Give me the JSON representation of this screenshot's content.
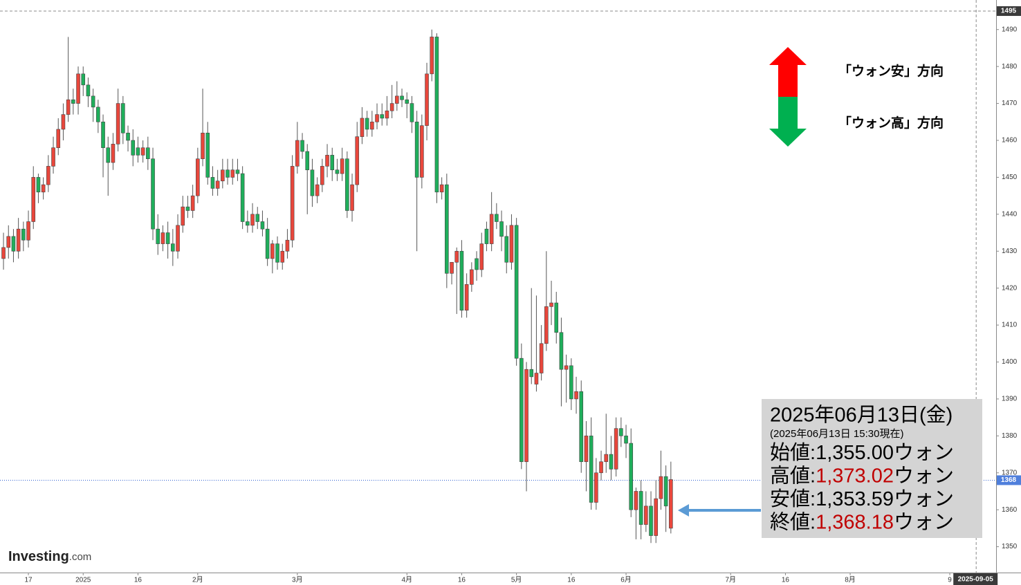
{
  "chart_data": {
    "type": "candlestick",
    "open": [
      1428,
      1431,
      1434,
      1430,
      1436,
      1433,
      1438,
      1450,
      1446,
      1448,
      1453,
      1458,
      1463,
      1467,
      1471,
      1470,
      1478,
      1475,
      1472,
      1469,
      1465,
      1458,
      1454,
      1459,
      1470,
      1462,
      1460,
      1458,
      1456,
      1458,
      1455,
      1436,
      1432,
      1435,
      1432,
      1430,
      1437,
      1442,
      1441,
      1445,
      1455,
      1462,
      1450,
      1447,
      1449,
      1452,
      1450,
      1452,
      1451,
      1438,
      1437,
      1440,
      1438,
      1436,
      1428,
      1432,
      1427,
      1430,
      1433,
      1453,
      1460,
      1457,
      1452,
      1445,
      1448,
      1453,
      1456,
      1452,
      1451,
      1455,
      1441,
      1448,
      1461,
      1466,
      1463,
      1465,
      1467,
      1466,
      1468,
      1470,
      1472,
      1471,
      1470,
      1465,
      1450,
      1464,
      1478,
      1488,
      1446,
      1448,
      1424,
      1427,
      1430,
      1414,
      1421,
      1428,
      1425,
      1436,
      1432,
      1440,
      1438,
      1434,
      1427,
      1437,
      1401,
      1373,
      1398,
      1394,
      1397,
      1405,
      1415,
      1416,
      1408,
      1398,
      1399,
      1390,
      1392,
      1373,
      1380,
      1362,
      1370,
      1373,
      1375,
      1371,
      1382,
      1380,
      1378,
      1360,
      1365,
      1356,
      1361,
      1353,
      1363,
      1369,
      1355
    ],
    "high": [
      1435,
      1437,
      1436,
      1439,
      1438,
      1441,
      1453,
      1451,
      1450,
      1456,
      1461,
      1466,
      1470,
      1488,
      1474,
      1480,
      1480,
      1477,
      1474,
      1471,
      1467,
      1461,
      1462,
      1474,
      1472,
      1464,
      1463,
      1461,
      1460,
      1461,
      1458,
      1440,
      1437,
      1438,
      1436,
      1440,
      1445,
      1445,
      1448,
      1458,
      1474,
      1465,
      1453,
      1452,
      1455,
      1455,
      1455,
      1455,
      1453,
      1441,
      1443,
      1442,
      1441,
      1439,
      1433,
      1434,
      1432,
      1436,
      1456,
      1465,
      1462,
      1459,
      1455,
      1450,
      1455,
      1459,
      1458,
      1455,
      1458,
      1457,
      1451,
      1465,
      1469,
      1468,
      1468,
      1470,
      1470,
      1472,
      1475,
      1476,
      1474,
      1473,
      1472,
      1468,
      1467,
      1481,
      1490,
      1489,
      1450,
      1451,
      1427,
      1431,
      1433,
      1424,
      1427,
      1430,
      1435,
      1438,
      1446,
      1443,
      1441,
      1437,
      1440,
      1439,
      1405,
      1400,
      1420,
      1418,
      1410,
      1430,
      1422,
      1419,
      1412,
      1402,
      1401,
      1396,
      1395,
      1384,
      1385,
      1374,
      1376,
      1386,
      1380,
      1385,
      1385,
      1383,
      1382,
      1366,
      1368,
      1365,
      1365,
      1368,
      1376,
      1372,
      1373.02
    ],
    "low": [
      1425,
      1428,
      1427,
      1428,
      1430,
      1431,
      1436,
      1443,
      1444,
      1446,
      1451,
      1456,
      1460,
      1465,
      1467,
      1467,
      1472,
      1469,
      1465,
      1462,
      1450,
      1445,
      1452,
      1457,
      1459,
      1457,
      1453,
      1454,
      1454,
      1452,
      1433,
      1429,
      1430,
      1428,
      1426,
      1428,
      1435,
      1439,
      1439,
      1443,
      1453,
      1448,
      1445,
      1445,
      1447,
      1448,
      1448,
      1449,
      1436,
      1435,
      1435,
      1436,
      1434,
      1426,
      1424,
      1425,
      1425,
      1428,
      1431,
      1451,
      1455,
      1440,
      1442,
      1443,
      1446,
      1450,
      1449,
      1449,
      1449,
      1439,
      1438,
      1446,
      1459,
      1461,
      1461,
      1463,
      1464,
      1464,
      1466,
      1468,
      1469,
      1466,
      1462,
      1430,
      1447,
      1460,
      1476,
      1443,
      1444,
      1420,
      1421,
      1413,
      1412,
      1412,
      1419,
      1422,
      1423,
      1430,
      1430,
      1436,
      1430,
      1424,
      1425,
      1399,
      1371,
      1365,
      1394,
      1392,
      1395,
      1403,
      1410,
      1405,
      1388,
      1389,
      1387,
      1386,
      1370,
      1365,
      1360,
      1360,
      1368,
      1370,
      1368,
      1369,
      1377,
      1374,
      1358,
      1352,
      1352,
      1354,
      1351,
      1351,
      1360,
      1354,
      1353.59
    ],
    "close": [
      1431,
      1434,
      1430,
      1436,
      1433,
      1438,
      1450,
      1446,
      1448,
      1453,
      1458,
      1463,
      1467,
      1471,
      1470,
      1478,
      1475,
      1472,
      1469,
      1465,
      1458,
      1454,
      1459,
      1470,
      1462,
      1460,
      1456,
      1456,
      1458,
      1455,
      1436,
      1432,
      1435,
      1432,
      1430,
      1437,
      1442,
      1441,
      1445,
      1455,
      1462,
      1450,
      1447,
      1449,
      1452,
      1450,
      1452,
      1451,
      1438,
      1437,
      1440,
      1438,
      1436,
      1428,
      1432,
      1427,
      1430,
      1433,
      1453,
      1460,
      1457,
      1452,
      1445,
      1448,
      1453,
      1456,
      1452,
      1451,
      1455,
      1441,
      1448,
      1461,
      1466,
      1463,
      1465,
      1467,
      1466,
      1468,
      1470,
      1472,
      1471,
      1470,
      1465,
      1450,
      1464,
      1478,
      1488,
      1446,
      1448,
      1424,
      1427,
      1430,
      1414,
      1421,
      1425,
      1425,
      1432,
      1432,
      1440,
      1438,
      1434,
      1427,
      1437,
      1401,
      1373,
      1398,
      1396,
      1397,
      1405,
      1415,
      1416,
      1408,
      1398,
      1399,
      1390,
      1392,
      1373,
      1380,
      1362,
      1370,
      1373,
      1375,
      1371,
      1382,
      1380,
      1378,
      1360,
      1365,
      1356,
      1361,
      1353,
      1363,
      1369,
      1361,
      1368.18
    ],
    "colors": {
      "up": "#e8473c",
      "down": "#1fae5b"
    },
    "xlim": [
      -0.7,
      199.3
    ],
    "xticks": [
      {
        "value": 5,
        "label": "17"
      },
      {
        "value": 16,
        "label": "2025"
      },
      {
        "value": 27,
        "label": "16"
      },
      {
        "value": 39,
        "label": "2月"
      },
      {
        "value": 59,
        "label": "3月"
      },
      {
        "value": 81,
        "label": "4月"
      },
      {
        "value": 92,
        "label": "16"
      },
      {
        "value": 103,
        "label": "5月"
      },
      {
        "value": 114,
        "label": "16"
      },
      {
        "value": 125,
        "label": "6月"
      },
      {
        "value": 146,
        "label": "7月"
      },
      {
        "value": 157,
        "label": "16"
      },
      {
        "value": 170,
        "label": "8月"
      },
      {
        "value": 190,
        "label": "9"
      }
    ],
    "ylim": [
      1343,
      1498
    ],
    "yticks": [
      1350,
      1360,
      1370,
      1380,
      1390,
      1400,
      1410,
      1420,
      1430,
      1440,
      1450,
      1460,
      1470,
      1480,
      1490
    ],
    "high_line": 1495,
    "last_price": 1368,
    "cursor": {
      "value": 195.3,
      "label": "2025-09-05"
    },
    "legend_up": {
      "text": "「ウォン安」方向",
      "color": "#ff0000"
    },
    "legend_down": {
      "text": "「ウォン高」方向",
      "color": "#00b050"
    },
    "info": {
      "date": "2025年06月13日(金)",
      "asof": "(2025年06月13日 15:30現在)",
      "rows": [
        {
          "label": "始値:",
          "value": 1355.0,
          "value_label": "1,355.00",
          "unit": "ウォン",
          "color": "#000000"
        },
        {
          "label": "高値:",
          "value": 1373.02,
          "value_label": "1,373.02",
          "unit": "ウォン",
          "color": "#c00000"
        },
        {
          "label": "安値:",
          "value": 1353.59,
          "value_label": "1,353.59",
          "unit": "ウォン",
          "color": "#000000"
        },
        {
          "label": "終値:",
          "value": 1368.18,
          "value_label": "1,368.18",
          "unit": "ウォン",
          "color": "#c00000"
        }
      ]
    },
    "logo": {
      "name": "Investing",
      "suffix": ".com"
    }
  }
}
